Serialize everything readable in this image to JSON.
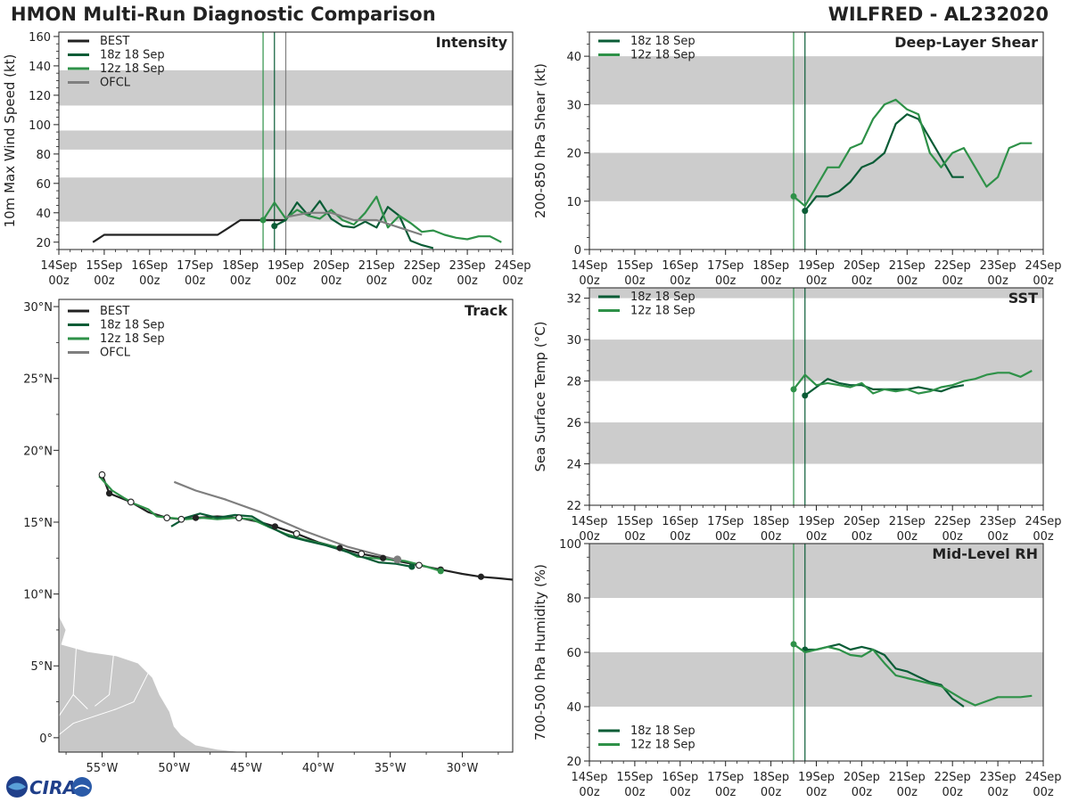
{
  "header": {
    "left": "HMON Multi-Run Diagnostic Comparison",
    "right": "WILFRED - AL232020"
  },
  "logo": {
    "text": "CIRA"
  },
  "colors": {
    "best": "#222222",
    "run18z": "#0a5c36",
    "run12z": "#2e9148",
    "ofcl": "#7f7f7f",
    "band": "#cccccc"
  },
  "time_axis": {
    "ticks": [
      "14Sep\n00z",
      "15Sep\n00z",
      "16Sep\n00z",
      "17Sep\n00z",
      "18Sep\n00z",
      "19Sep\n00z",
      "20Sep\n00z",
      "21Sep\n00z",
      "22Sep\n00z",
      "23Sep\n00z",
      "24Sep\n00z"
    ],
    "run_markers": [
      4.5,
      4.75,
      5.0
    ]
  },
  "chart_data": [
    {
      "id": "intensity",
      "type": "line",
      "title": "Intensity",
      "ylabel": "10m Max Wind Speed (kt)",
      "xlim": [
        0,
        10
      ],
      "ylim": [
        15,
        163
      ],
      "yticks": [
        20,
        40,
        60,
        80,
        100,
        120,
        140,
        160
      ],
      "bands": [
        [
          34,
          64
        ],
        [
          83,
          96
        ],
        [
          113,
          137
        ]
      ],
      "vlines": [
        4.5,
        4.75,
        5.0
      ],
      "legend": [
        "BEST",
        "18z 18 Sep",
        "12z 18 Sep",
        "OFCL"
      ],
      "series": [
        {
          "name": "BEST",
          "color": "best",
          "x": [
            0.75,
            1.0,
            1.25,
            1.5,
            1.75,
            2.0,
            2.25,
            2.5,
            2.75,
            3.0,
            3.25,
            3.5,
            3.75,
            4.0,
            4.25,
            4.5,
            4.75,
            5.0
          ],
          "y": [
            20,
            25,
            25,
            25,
            25,
            25,
            25,
            25,
            25,
            25,
            25,
            25,
            30,
            35,
            35,
            35,
            35,
            35
          ]
        },
        {
          "name": "18z 18 Sep",
          "color": "run18z",
          "x": [
            4.75,
            5.0,
            5.25,
            5.5,
            5.75,
            6.0,
            6.25,
            6.5,
            6.75,
            7.0,
            7.25,
            7.5,
            7.75,
            8.0,
            8.25
          ],
          "y": [
            31,
            35,
            47,
            38,
            48,
            36,
            31,
            30,
            34,
            30,
            44,
            38,
            21,
            18,
            16
          ],
          "start_marker": true
        },
        {
          "name": "12z 18 Sep",
          "color": "run12z",
          "x": [
            4.5,
            4.75,
            5.0,
            5.25,
            5.5,
            5.75,
            6.0,
            6.25,
            6.5,
            6.75,
            7.0,
            7.25,
            7.5,
            7.75,
            8.0,
            8.25,
            8.5,
            8.75,
            9.0,
            9.25,
            9.5,
            9.75
          ],
          "y": [
            35,
            47,
            36,
            42,
            38,
            36,
            42,
            35,
            32,
            40,
            51,
            30,
            38,
            33,
            27,
            28,
            25,
            23,
            22,
            24,
            24,
            20
          ],
          "start_marker": true
        },
        {
          "name": "OFCL",
          "color": "ofcl",
          "x": [
            5.0,
            5.5,
            6.0,
            6.5,
            7.0,
            7.5,
            8.0
          ],
          "y": [
            37,
            40,
            40,
            35,
            35,
            30,
            25
          ]
        }
      ]
    },
    {
      "id": "shear",
      "type": "line",
      "title": "Deep-Layer Shear",
      "ylabel": "200-850 hPa Shear (kt)",
      "xlim": [
        0,
        10
      ],
      "ylim": [
        0,
        45
      ],
      "yticks": [
        0,
        10,
        20,
        30,
        40
      ],
      "bands": [
        [
          10,
          20
        ],
        [
          30,
          40
        ]
      ],
      "vlines": [
        4.5,
        4.75
      ],
      "legend": [
        "18z 18 Sep",
        "12z 18 Sep"
      ],
      "series": [
        {
          "name": "18z 18 Sep",
          "color": "run18z",
          "x": [
            4.75,
            5.0,
            5.25,
            5.5,
            5.75,
            6.0,
            6.25,
            6.5,
            6.75,
            7.0,
            7.25,
            7.5,
            7.75,
            8.0,
            8.25
          ],
          "y": [
            8,
            11,
            11,
            12,
            14,
            17,
            18,
            20,
            26,
            28,
            27,
            23,
            19,
            15,
            15
          ],
          "start_marker": true
        },
        {
          "name": "12z 18 Sep",
          "color": "run12z",
          "x": [
            4.5,
            4.75,
            5.0,
            5.25,
            5.5,
            5.75,
            6.0,
            6.25,
            6.5,
            6.75,
            7.0,
            7.25,
            7.5,
            7.75,
            8.0,
            8.25,
            8.5,
            8.75,
            9.0,
            9.25,
            9.5,
            9.75
          ],
          "y": [
            11,
            9,
            13,
            17,
            17,
            21,
            22,
            27,
            30,
            31,
            29,
            28,
            20,
            17,
            20,
            21,
            17,
            13,
            15,
            21,
            22,
            22
          ],
          "start_marker": true
        }
      ]
    },
    {
      "id": "sst",
      "type": "line",
      "title": "SST",
      "ylabel": "Sea Surface Temp (°C)",
      "xlim": [
        0,
        10
      ],
      "ylim": [
        22,
        32.5
      ],
      "yticks": [
        22,
        24,
        26,
        28,
        30,
        32
      ],
      "bands": [
        [
          24,
          26
        ],
        [
          28,
          30
        ],
        [
          32,
          32.5
        ]
      ],
      "vlines": [
        4.5,
        4.75
      ],
      "legend": [
        "18z 18 Sep",
        "12z 18 Sep"
      ],
      "series": [
        {
          "name": "18z 18 Sep",
          "color": "run18z",
          "x": [
            4.75,
            5.0,
            5.25,
            5.5,
            5.75,
            6.0,
            6.25,
            6.5,
            6.75,
            7.0,
            7.25,
            7.5,
            7.75,
            8.0,
            8.25
          ],
          "y": [
            27.3,
            27.7,
            28.1,
            27.9,
            27.8,
            27.8,
            27.6,
            27.6,
            27.6,
            27.6,
            27.7,
            27.6,
            27.5,
            27.7,
            27.8
          ],
          "start_marker": true
        },
        {
          "name": "12z 18 Sep",
          "color": "run12z",
          "x": [
            4.5,
            4.75,
            5.0,
            5.25,
            5.5,
            5.75,
            6.0,
            6.25,
            6.5,
            6.75,
            7.0,
            7.25,
            7.5,
            7.75,
            8.0,
            8.25,
            8.5,
            8.75,
            9.0,
            9.25,
            9.5,
            9.75
          ],
          "y": [
            27.6,
            28.3,
            27.8,
            27.9,
            27.8,
            27.7,
            27.9,
            27.4,
            27.6,
            27.5,
            27.6,
            27.4,
            27.5,
            27.7,
            27.8,
            28.0,
            28.1,
            28.3,
            28.4,
            28.4,
            28.2,
            28.5
          ],
          "start_marker": true
        }
      ]
    },
    {
      "id": "rh",
      "type": "line",
      "title": "Mid-Level RH",
      "ylabel": "700-500 hPa Humidity (%)",
      "xlim": [
        0,
        10
      ],
      "ylim": [
        20,
        100
      ],
      "yticks": [
        20,
        40,
        60,
        80,
        100
      ],
      "bands": [
        [
          40,
          60
        ],
        [
          80,
          100
        ]
      ],
      "vlines": [
        4.5,
        4.75
      ],
      "legend": [
        "18z 18 Sep",
        "12z 18 Sep"
      ],
      "legend_pos": "bottom-left",
      "series": [
        {
          "name": "18z 18 Sep",
          "color": "run18z",
          "x": [
            4.75,
            5.0,
            5.25,
            5.5,
            5.75,
            6.0,
            6.25,
            6.5,
            6.75,
            7.0,
            7.25,
            7.5,
            7.75,
            8.0,
            8.25
          ],
          "y": [
            61,
            61,
            62,
            63,
            61,
            62,
            61,
            59,
            54,
            53,
            51,
            49,
            48,
            43,
            40
          ],
          "start_marker": true
        },
        {
          "name": "12z 18 Sep",
          "color": "run12z",
          "x": [
            4.5,
            4.75,
            5.0,
            5.25,
            5.5,
            5.75,
            6.0,
            6.25,
            6.5,
            6.75,
            7.0,
            7.25,
            7.5,
            7.75,
            8.0,
            8.25,
            8.5,
            8.75,
            9.0,
            9.25,
            9.5,
            9.75
          ],
          "y": [
            63,
            60,
            61,
            62,
            61,
            59,
            58.5,
            61,
            56,
            51.5,
            50.5,
            49.5,
            48.5,
            47.5,
            45,
            42.5,
            40.5,
            42,
            43.5,
            43.5,
            43.5,
            44
          ],
          "start_marker": true
        }
      ]
    },
    {
      "id": "track",
      "type": "map",
      "title": "Track",
      "xlim": [
        -58,
        -26.5
      ],
      "ylim": [
        -1,
        30.5
      ],
      "xticks": [
        -55,
        -50,
        -45,
        -40,
        -35,
        -30
      ],
      "xticklabels": [
        "55°W",
        "50°W",
        "45°W",
        "40°W",
        "35°W",
        "30°W"
      ],
      "yticks": [
        0,
        5,
        10,
        15,
        20,
        25,
        30
      ],
      "yticklabels": [
        "0°",
        "5°N",
        "10°N",
        "15°N",
        "20°N",
        "25°N",
        "30°N"
      ],
      "legend": [
        "BEST",
        "18z 18 Sep",
        "12z 18 Sep",
        "OFCL"
      ],
      "land": [
        [
          -58,
          8.5
        ],
        [
          -57.5,
          7.5
        ],
        [
          -57.8,
          6.5
        ],
        [
          -56,
          6
        ],
        [
          -54,
          5.7
        ],
        [
          -52.5,
          5.2
        ],
        [
          -51.5,
          4.2
        ],
        [
          -51,
          3
        ],
        [
          -50.3,
          1.8
        ],
        [
          -50,
          0.8
        ],
        [
          -49.5,
          0.2
        ],
        [
          -48.5,
          -0.5
        ],
        [
          -47,
          -0.8
        ],
        [
          -45,
          -1
        ],
        [
          -58,
          -1
        ]
      ],
      "land_lines": [
        [
          [
            -56.8,
            6.2
          ],
          [
            -57,
            3
          ],
          [
            -56,
            2
          ]
        ],
        [
          [
            -54.2,
            5.8
          ],
          [
            -54.5,
            3
          ],
          [
            -55.5,
            2.2
          ]
        ],
        [
          [
            -51.8,
            4.5
          ],
          [
            -52.8,
            2.5
          ],
          [
            -54,
            2
          ]
        ],
        [
          [
            -57,
            3
          ],
          [
            -58,
            1.5
          ]
        ],
        [
          [
            -54,
            2
          ],
          [
            -57,
            1
          ],
          [
            -58,
            0.2
          ]
        ]
      ],
      "series": [
        {
          "name": "BEST",
          "color": "best",
          "lon": [
            -55.0,
            -54.5,
            -53.0,
            -51.8,
            -50.5,
            -49.5,
            -48.5,
            -47.0,
            -45.5,
            -44.0,
            -43.0,
            -41.5,
            -40.0,
            -38.5,
            -37.0,
            -35.5,
            -34.5,
            -33.0,
            -31.5,
            -30.0,
            -28.7,
            -27.5,
            -26.5
          ],
          "lat": [
            18.3,
            17.0,
            16.4,
            15.7,
            15.3,
            15.2,
            15.3,
            15.4,
            15.3,
            15.0,
            14.7,
            14.2,
            13.6,
            13.2,
            12.8,
            12.5,
            12.3,
            12.0,
            11.7,
            11.4,
            11.2,
            11.1,
            11.0
          ],
          "filled": [
            1,
            6,
            10,
            13,
            15,
            18,
            20
          ],
          "open": [
            0,
            2,
            4,
            5,
            8,
            11,
            14,
            17
          ]
        },
        {
          "name": "12z 18 Sep",
          "color": "run12z",
          "lon": [
            -55.2,
            -54.3,
            -53.5,
            -52.8,
            -51.8,
            -51.2,
            -50.3,
            -49.2,
            -48.0,
            -47.0,
            -45.8,
            -44.6,
            -43.5,
            -42.3,
            -41.0,
            -39.7,
            -38.5,
            -37.3,
            -36.2,
            -35.0,
            -34.0,
            -32.8,
            -31.5
          ],
          "lat": [
            18.2,
            17.2,
            16.7,
            16.3,
            15.9,
            15.4,
            15.3,
            15.2,
            15.3,
            15.2,
            15.3,
            15.2,
            14.7,
            14.2,
            13.8,
            13.5,
            13.2,
            12.6,
            12.5,
            12.4,
            12.3,
            12.0,
            11.6
          ],
          "filled": [
            22
          ],
          "open": []
        },
        {
          "name": "18z 18 Sep",
          "color": "run18z",
          "lon": [
            -50.2,
            -49.2,
            -48.2,
            -47.0,
            -45.8,
            -44.6,
            -43.4,
            -42.0,
            -40.8,
            -39.5,
            -38.2,
            -37.0,
            -35.8,
            -34.6,
            -33.5
          ],
          "lat": [
            14.7,
            15.3,
            15.6,
            15.3,
            15.5,
            15.4,
            14.7,
            14.0,
            13.7,
            13.4,
            13.0,
            12.6,
            12.2,
            12.1,
            11.9
          ],
          "filled": [
            14
          ],
          "open": []
        },
        {
          "name": "OFCL",
          "color": "ofcl",
          "lon": [
            -50.0,
            -48.5,
            -46.5,
            -44.0,
            -41.0,
            -38.0,
            -35.0,
            -34.5
          ],
          "lat": [
            17.8,
            17.2,
            16.6,
            15.7,
            14.4,
            13.3,
            12.5,
            12.4
          ],
          "filled": [],
          "open": []
        }
      ]
    }
  ]
}
